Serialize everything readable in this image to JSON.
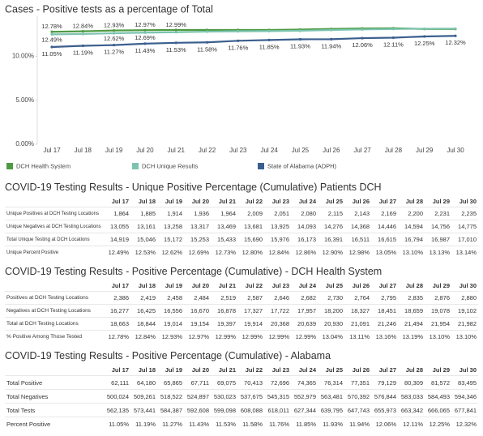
{
  "chart_data": {
    "type": "line",
    "title": "Cases - Positive tests as a percentage of Total",
    "categories": [
      "Jul 17",
      "Jul 18",
      "Jul 19",
      "Jul 20",
      "Jul 21",
      "Jul 22",
      "Jul 23",
      "Jul 24",
      "Jul 25",
      "Jul 26",
      "Jul 27",
      "Jul 28",
      "Jul 29",
      "Jul 30"
    ],
    "ylim": [
      0,
      14
    ],
    "yticks": [
      {
        "value": 0,
        "label": "0.00%"
      },
      {
        "value": 5,
        "label": "5.00%"
      },
      {
        "value": 10,
        "label": "10.00%"
      }
    ],
    "grid": false,
    "series": [
      {
        "name": "DCH Health System",
        "color": "#4e9a42",
        "values": [
          12.78,
          12.84,
          12.93,
          12.97,
          12.99,
          12.99,
          12.99,
          12.99,
          13.04,
          13.11,
          13.16,
          13.19,
          13.1,
          13.1
        ],
        "value_labels": [
          "12.78%",
          "12.84%",
          "12.93%",
          "12.97%",
          "12.99%",
          null,
          null,
          null,
          null,
          null,
          null,
          null,
          null,
          null
        ]
      },
      {
        "name": "DCH Unique Results",
        "color": "#7cc4b0",
        "values": [
          12.49,
          12.53,
          12.62,
          12.69,
          12.73,
          12.8,
          12.84,
          12.86,
          12.9,
          12.98,
          13.05,
          13.1,
          13.13,
          13.14
        ],
        "value_labels": [
          "12.49%",
          null,
          "12.62%",
          "12.69%",
          null,
          null,
          null,
          null,
          null,
          null,
          null,
          null,
          null,
          null
        ]
      },
      {
        "name": "State of Alabama (ADPH)",
        "color": "#3b5f8e",
        "values": [
          11.05,
          11.19,
          11.27,
          11.43,
          11.53,
          11.58,
          11.76,
          11.85,
          11.93,
          11.94,
          12.06,
          12.11,
          12.25,
          12.32
        ],
        "value_labels": [
          "11.05%",
          "11.19%",
          "11.27%",
          "11.43%",
          "11.53%",
          "11.58%",
          "11.76%",
          "11.85%",
          "11.93%",
          "11.94%",
          "12.06%",
          "12.11%",
          "12.25%",
          "12.32%"
        ]
      }
    ]
  },
  "tables": [
    {
      "title": "COVID-19 Testing Results - Unique Positive Percentage (Cumulative) Patients DCH",
      "columns": [
        "Jul 17",
        "Jul 18",
        "Jul 19",
        "Jul 20",
        "Jul 21",
        "Jul 22",
        "Jul 23",
        "Jul 24",
        "Jul 25",
        "Jul 26",
        "Jul 27",
        "Jul 28",
        "Jul 29",
        "Jul 30"
      ],
      "rows": [
        {
          "label": "Unique Positives at DCH Testing Locations",
          "cells": [
            "1,864",
            "1,885",
            "1,914",
            "1,936",
            "1,964",
            "2,009",
            "2,051",
            "2,080",
            "2,115",
            "2,143",
            "2,169",
            "2,200",
            "2,231",
            "2,235"
          ]
        },
        {
          "label": "Unique Negatives at DCH Testing Locations",
          "cells": [
            "13,055",
            "13,161",
            "13,258",
            "13,317",
            "13,469",
            "13,681",
            "13,925",
            "14,093",
            "14,276",
            "14,368",
            "14,446",
            "14,594",
            "14,756",
            "14,775"
          ]
        },
        {
          "label": "Total Unique Testing at DCH Locations",
          "cells": [
            "14,919",
            "15,046",
            "15,172",
            "15,253",
            "15,433",
            "15,690",
            "15,976",
            "16,173",
            "16,391",
            "16,511",
            "16,615",
            "16,794",
            "16,987",
            "17,010"
          ]
        },
        {
          "label": "Unique Percent Positive",
          "cells": [
            "12.49%",
            "12.53%",
            "12.62%",
            "12.69%",
            "12.73%",
            "12.80%",
            "12.84%",
            "12.86%",
            "12.90%",
            "12.98%",
            "13.05%",
            "13.10%",
            "13.13%",
            "13.14%"
          ]
        }
      ]
    },
    {
      "title": "COVID-19 Testing Results - Positive Percentage (Cumulative) - DCH Health System",
      "columns": [
        "Jul 17",
        "Jul 18",
        "Jul 19",
        "Jul 20",
        "Jul 21",
        "Jul 22",
        "Jul 23",
        "Jul 24",
        "Jul 25",
        "Jul 26",
        "Jul 27",
        "Jul 28",
        "Jul 29",
        "Jul 30"
      ],
      "rows": [
        {
          "label": "Positives at DCH Testing Locations",
          "cells": [
            "2,386",
            "2,419",
            "2,458",
            "2,484",
            "2,519",
            "2,587",
            "2,646",
            "2,682",
            "2,730",
            "2,764",
            "2,795",
            "2,835",
            "2,876",
            "2,880"
          ]
        },
        {
          "label": "Negatives at DCH Testing Locations",
          "cells": [
            "16,277",
            "16,425",
            "16,556",
            "16,670",
            "16,878",
            "17,327",
            "17,722",
            "17,957",
            "18,200",
            "18,327",
            "18,451",
            "18,659",
            "19,078",
            "19,102"
          ]
        },
        {
          "label": "Total at DCH Testing Locations",
          "cells": [
            "18,663",
            "18,844",
            "19,014",
            "19,154",
            "19,397",
            "19,914",
            "20,368",
            "20,639",
            "20,930",
            "21,091",
            "21,246",
            "21,494",
            "21,954",
            "21,982"
          ]
        },
        {
          "label": "% Positive Among Those Tested",
          "cells": [
            "12.78%",
            "12.84%",
            "12.93%",
            "12.97%",
            "12.99%",
            "12.99%",
            "12.99%",
            "12.99%",
            "13.04%",
            "13.11%",
            "13.16%",
            "13.19%",
            "13.10%",
            "13.10%"
          ]
        }
      ]
    },
    {
      "title": "COVID-19 Testing Results - Positive Percentage (Cumulative) - Alabama",
      "columns": [
        "Jul 17",
        "Jul 18",
        "Jul 19",
        "Jul 20",
        "Jul 21",
        "Jul 22",
        "Jul 23",
        "Jul 24",
        "Jul 25",
        "Jul 26",
        "Jul 27",
        "Jul 28",
        "Jul 29",
        "Jul 30"
      ],
      "rows": [
        {
          "label": "Total Positive",
          "cells": [
            "62,111",
            "64,180",
            "65,865",
            "67,711",
            "69,075",
            "70,413",
            "72,696",
            "74,365",
            "76,314",
            "77,351",
            "79,129",
            "80,309",
            "81,572",
            "83,495"
          ]
        },
        {
          "label": "Total Negatives",
          "cells": [
            "500,024",
            "509,261",
            "518,522",
            "524,897",
            "530,023",
            "537,675",
            "545,315",
            "552,979",
            "563,481",
            "570,392",
            "576,844",
            "583,033",
            "584,493",
            "594,346"
          ]
        },
        {
          "label": "Total Tests",
          "cells": [
            "562,135",
            "573,441",
            "584,387",
            "592,608",
            "599,098",
            "608,088",
            "618,011",
            "627,344",
            "639,795",
            "647,743",
            "655,973",
            "663,342",
            "666,065",
            "677,841"
          ]
        },
        {
          "label": "Percent Positive",
          "cells": [
            "11.05%",
            "11.19%",
            "11.27%",
            "11.43%",
            "11.53%",
            "11.58%",
            "11.76%",
            "11.85%",
            "11.93%",
            "11.94%",
            "12.06%",
            "12.11%",
            "12.25%",
            "12.32%"
          ]
        }
      ]
    }
  ]
}
